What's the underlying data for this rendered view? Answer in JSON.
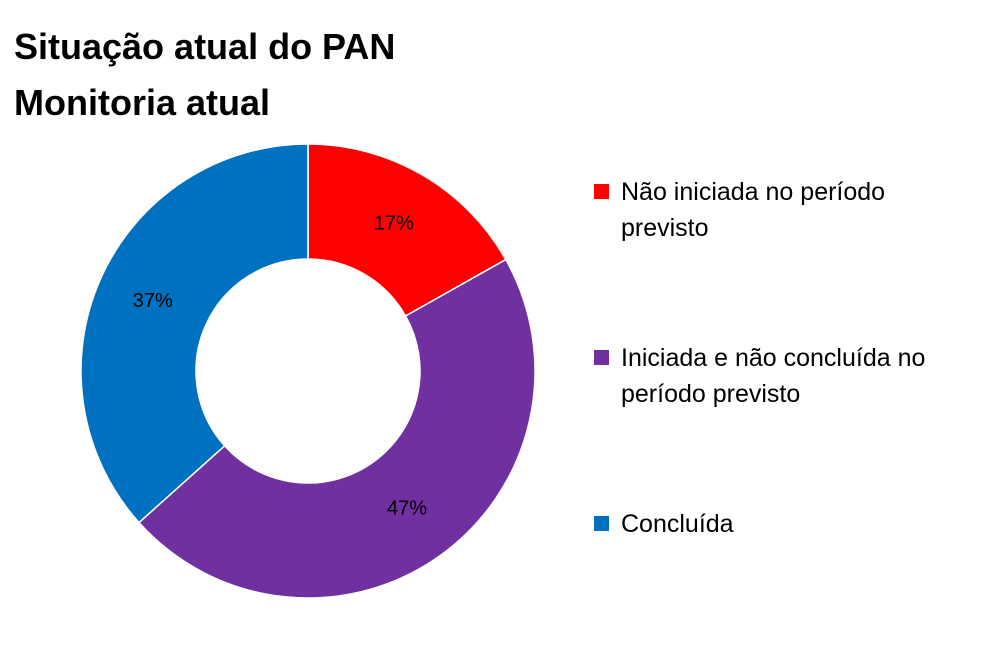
{
  "chart_data": {
    "type": "donut",
    "title": "Situação atual do PAN",
    "subtitle": "Monitoria atual",
    "categories": [
      "Não iniciada no período previsto",
      "Iniciada e não concluída no período previsto",
      "Concluída"
    ],
    "values": [
      17,
      47,
      37
    ],
    "value_labels": [
      "17%",
      "47%",
      "37%"
    ],
    "colors": [
      "#ff0000",
      "#7030a0",
      "#0070c0"
    ],
    "legend": "right"
  }
}
